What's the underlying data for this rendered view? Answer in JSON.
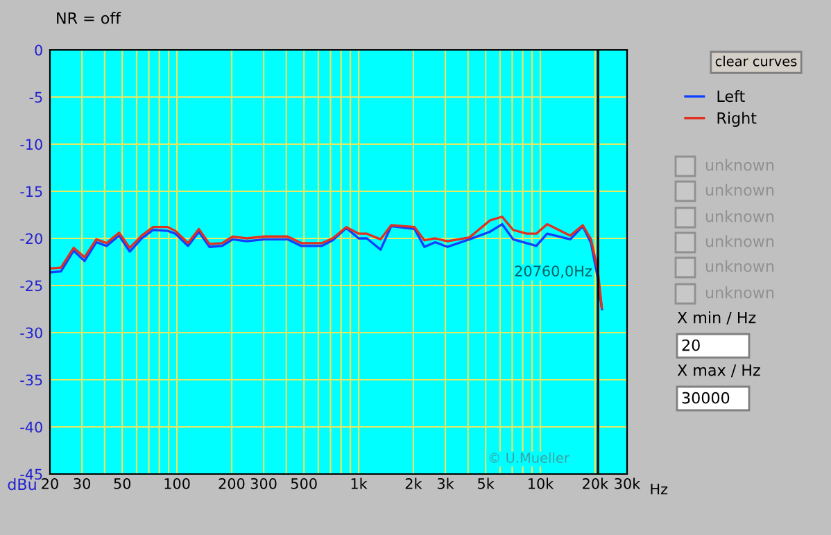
{
  "chart_data": {
    "type": "line",
    "title": "NR = off",
    "ylabel": "dBu",
    "x": [
      20,
      23,
      27,
      31,
      36,
      41,
      48,
      55,
      64,
      74,
      89,
      98,
      115,
      132,
      151,
      177,
      203,
      242,
      303,
      406,
      483,
      627,
      719,
      855,
      1000,
      1110,
      1320,
      1510,
      2030,
      2300,
      2640,
      3080,
      4070,
      5270,
      6160,
      7080,
      8410,
      9490,
      10900,
      14600,
      17100,
      19000,
      20700,
      21800
    ],
    "series": [
      {
        "name": "Left",
        "color": "#1040ff",
        "values": [
          -23.6,
          -23.5,
          -21.3,
          -22.4,
          -20.4,
          -20.8,
          -19.7,
          -21.4,
          -20.0,
          -19.1,
          -19.2,
          -19.5,
          -20.8,
          -19.3,
          -20.9,
          -20.8,
          -20.1,
          -20.3,
          -20.1,
          -20.1,
          -20.8,
          -20.8,
          -20.2,
          -18.9,
          -20.0,
          -20.0,
          -21.2,
          -18.7,
          -19.0,
          -20.9,
          -20.4,
          -20.9,
          -20.1,
          -19.3,
          -18.5,
          -20.1,
          -20.5,
          -20.8,
          -19.5,
          -20.1,
          -18.7,
          -20.5,
          -24.2,
          -27.5
        ]
      },
      {
        "name": "Right",
        "color": "#e03020",
        "values": [
          -23.2,
          -23.1,
          -21.0,
          -22.0,
          -20.1,
          -20.5,
          -19.4,
          -21.0,
          -19.7,
          -18.8,
          -18.8,
          -19.2,
          -20.5,
          -19.0,
          -20.6,
          -20.5,
          -19.8,
          -20.0,
          -19.8,
          -19.8,
          -20.5,
          -20.5,
          -20.0,
          -18.8,
          -19.5,
          -19.5,
          -20.1,
          -18.6,
          -18.8,
          -20.2,
          -20.0,
          -20.3,
          -19.9,
          -18.1,
          -17.7,
          -19.1,
          -19.5,
          -19.5,
          -18.5,
          -19.7,
          -18.6,
          -20.1,
          -23.4,
          -27.4
        ]
      }
    ],
    "log": "x",
    "xlim": [
      20,
      30000
    ],
    "ylim": [
      -45,
      0
    ],
    "xticks": [
      20,
      30,
      {
        "value": 40,
        "label": null
      },
      50,
      {
        "value": 60,
        "label": null
      },
      {
        "value": 70,
        "label": null
      },
      {
        "value": 80,
        "label": null
      },
      {
        "value": 90,
        "label": null
      },
      100,
      200,
      300,
      {
        "value": 400,
        "label": null
      },
      500,
      {
        "value": 600,
        "label": null
      },
      {
        "value": 700,
        "label": null
      },
      {
        "value": 800,
        "label": null
      },
      {
        "value": 900,
        "label": null
      },
      {
        "value": 1000,
        "label": "1k"
      },
      {
        "value": 2000,
        "label": "2k"
      },
      {
        "value": 3000,
        "label": "3k"
      },
      {
        "value": 4000,
        "label": null
      },
      {
        "value": 5000,
        "label": "5k"
      },
      {
        "value": 6000,
        "label": null
      },
      {
        "value": 7000,
        "label": null
      },
      {
        "value": 8000,
        "label": null
      },
      {
        "value": 9000,
        "label": null
      },
      {
        "value": 10000,
        "label": "10k"
      },
      {
        "value": 20000,
        "label": "20k"
      },
      {
        "value": 30000,
        "label": "30k"
      }
    ],
    "xlabel": "Hz",
    "yticks": [
      -45,
      -40,
      -35,
      -30,
      -25,
      -20,
      -15,
      -10,
      -5,
      0
    ],
    "grid": true,
    "legend": "right",
    "marker": "none",
    "line_style": "solid",
    "ref_lines": [
      {
        "axis": "x",
        "value": 20760,
        "label": "20760,0Hz",
        "color": "#000000"
      }
    ],
    "annotations": [
      "clear curves",
      "unknown",
      "unknown",
      "unknown",
      "unknown",
      "unknown",
      "unknown",
      "X min / Hz",
      "20",
      "X max / Hz",
      "30000",
      "© U.Mueller"
    ]
  }
}
